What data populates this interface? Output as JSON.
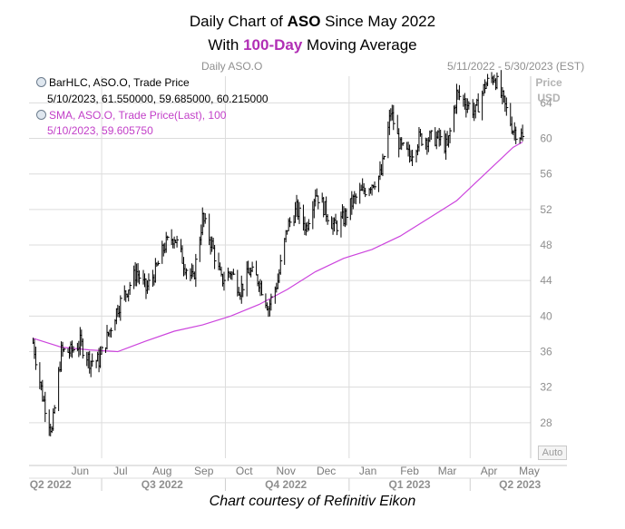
{
  "title": {
    "line1_pre": "Daily Chart of ",
    "line1_ticker": "ASO",
    "line1_post": " Since May 2022",
    "line2_pre": "With ",
    "line2_highlight": "100-Day",
    "line2_post": " Moving Average"
  },
  "subtitle": "Daily ASO.O",
  "date_range": "5/11/2022 - 5/30/2023 (EST)",
  "legend": {
    "bar_label": "BarHLC, ASO.O, Trade Price",
    "bar_values": "5/10/2023, 61.550000, 59.685000, 60.215000",
    "sma_label": "SMA, ASO.O, Trade Price(Last),  100",
    "sma_values": "5/10/2023, 59.605750"
  },
  "y_axis_title": [
    "Price",
    "USD"
  ],
  "auto_label": "Auto",
  "credit": "Chart courtesy of Refinitiv Eikon",
  "colors": {
    "price_bars": "#000000",
    "sma_line": "#cc44dd",
    "accent_text": "#b12fb5",
    "grid": "#dcdcdc",
    "axis_text": "#8f8f8f"
  },
  "chart_data": {
    "type": "line",
    "ylim": [
      24,
      67
    ],
    "y_ticks": [
      28,
      32,
      36,
      40,
      44,
      48,
      52,
      56,
      60,
      64
    ],
    "x_month_labels": [
      "Jun",
      "Jul",
      "Aug",
      "Sep",
      "Oct",
      "Nov",
      "Dec",
      "Jan",
      "Feb",
      "Mar",
      "Apr",
      "May"
    ],
    "x_quarter_labels": [
      "Q2 2022",
      "Q3 2022",
      "Q4 2022",
      "Q1 2023",
      "Q2 2023"
    ],
    "grid": true,
    "legend_position": "top-left",
    "series": [
      {
        "name": "BarHLC, ASO.O, Trade Price",
        "style": "hlc-bars",
        "x": [
          "2022-05-11",
          "2022-05-18",
          "2022-05-25",
          "2022-06-01",
          "2022-06-08",
          "2022-06-15",
          "2022-06-22",
          "2022-06-29",
          "2022-07-06",
          "2022-07-13",
          "2022-07-20",
          "2022-07-27",
          "2022-08-03",
          "2022-08-10",
          "2022-08-17",
          "2022-08-24",
          "2022-08-31",
          "2022-09-07",
          "2022-09-14",
          "2022-09-21",
          "2022-09-28",
          "2022-10-05",
          "2022-10-12",
          "2022-10-19",
          "2022-10-26",
          "2022-11-02",
          "2022-11-09",
          "2022-11-16",
          "2022-11-23",
          "2022-11-30",
          "2022-12-07",
          "2022-12-14",
          "2022-12-21",
          "2022-12-28",
          "2023-01-04",
          "2023-01-11",
          "2023-01-18",
          "2023-01-25",
          "2023-02-01",
          "2023-02-08",
          "2023-02-15",
          "2023-02-22",
          "2023-03-01",
          "2023-03-08",
          "2023-03-15",
          "2023-03-22",
          "2023-03-29",
          "2023-04-05",
          "2023-04-12",
          "2023-04-19",
          "2023-04-26",
          "2023-05-03",
          "2023-05-10"
        ],
        "close": [
          37,
          31,
          27,
          36,
          36,
          37,
          35,
          35,
          38,
          41,
          43,
          45,
          43,
          45,
          48,
          49,
          46,
          44,
          51,
          48,
          44,
          45,
          43,
          45,
          44,
          41,
          44,
          50,
          52,
          50,
          54,
          52,
          50,
          51,
          53,
          54,
          55,
          56,
          63,
          59,
          58,
          60,
          60,
          60,
          59,
          65,
          64,
          63,
          66,
          67,
          64,
          61,
          60.215
        ]
      },
      {
        "name": "SMA, ASO.O, Trade Price(Last), 100",
        "style": "line",
        "x": [
          "2022-05-11",
          "2022-06-01",
          "2022-06-22",
          "2022-07-13",
          "2022-08-03",
          "2022-08-24",
          "2022-09-14",
          "2022-10-05",
          "2022-10-26",
          "2022-11-16",
          "2022-12-07",
          "2022-12-28",
          "2023-01-18",
          "2023-02-08",
          "2023-03-01",
          "2023-03-22",
          "2023-04-12",
          "2023-05-03",
          "2023-05-10"
        ],
        "values": [
          37.5,
          36.5,
          36.2,
          36.0,
          37.2,
          38.3,
          39.0,
          40.0,
          41.3,
          43.0,
          45.0,
          46.5,
          47.5,
          49.0,
          51.0,
          53.0,
          56.0,
          59.0,
          59.6
        ]
      }
    ]
  }
}
